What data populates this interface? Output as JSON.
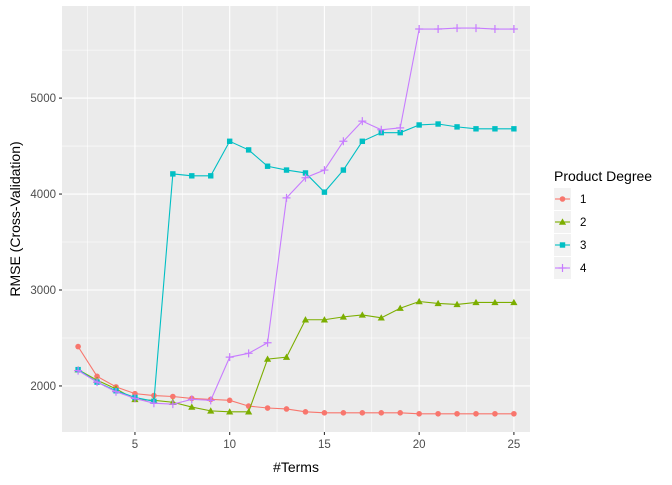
{
  "chart_data": {
    "type": "line",
    "xlabel": "#Terms",
    "ylabel": "RMSE (Cross-Validation)",
    "xlim": [
      1.15,
      25.85
    ],
    "ylim": [
      1520,
      5960
    ],
    "x_ticks": [
      5,
      10,
      15,
      20,
      25
    ],
    "y_ticks": [
      2000,
      3000,
      4000,
      5000
    ],
    "grid": true,
    "legend": {
      "title": "Product Degree",
      "position": "right"
    },
    "series": [
      {
        "name": "1",
        "color": "#F8766D",
        "marker": "circle",
        "x": [
          2,
          3,
          4,
          5,
          6,
          7,
          8,
          9,
          10,
          11,
          12,
          13,
          14,
          15,
          16,
          17,
          18,
          19,
          20,
          21,
          22,
          23,
          24,
          25
        ],
        "values": [
          2410,
          2100,
          1990,
          1920,
          1900,
          1890,
          1870,
          1860,
          1850,
          1790,
          1770,
          1760,
          1730,
          1720,
          1720,
          1720,
          1720,
          1720,
          1710,
          1710,
          1710,
          1710,
          1710,
          1710
        ]
      },
      {
        "name": "2",
        "color": "#7CAE00",
        "marker": "triangle",
        "x": [
          2,
          3,
          4,
          5,
          6,
          7,
          8,
          9,
          10,
          11,
          12,
          13,
          14,
          15,
          16,
          17,
          18,
          19,
          20,
          21,
          22,
          23,
          24,
          25
        ],
        "values": [
          2170,
          2060,
          1970,
          1860,
          1850,
          1830,
          1780,
          1740,
          1730,
          1730,
          2280,
          2300,
          2690,
          2690,
          2720,
          2740,
          2710,
          2810,
          2880,
          2860,
          2850,
          2870,
          2870,
          2870
        ]
      },
      {
        "name": "3",
        "color": "#00BFC4",
        "marker": "square",
        "x": [
          2,
          3,
          4,
          5,
          6,
          7,
          8,
          9,
          10,
          11,
          12,
          13,
          14,
          15,
          16,
          17,
          18,
          19,
          20,
          21,
          22,
          23,
          24,
          25
        ],
        "values": [
          2170,
          2040,
          1950,
          1880,
          1840,
          4210,
          4190,
          4190,
          4550,
          4460,
          4290,
          4250,
          4220,
          4020,
          4250,
          4550,
          4640,
          4640,
          4720,
          4730,
          4700,
          4680,
          4680,
          4680
        ]
      },
      {
        "name": "4",
        "color": "#C77CFF",
        "marker": "plus",
        "x": [
          2,
          3,
          4,
          5,
          6,
          7,
          8,
          9,
          10,
          11,
          12,
          13,
          14,
          15,
          16,
          17,
          18,
          19,
          20,
          21,
          22,
          23,
          24,
          25
        ],
        "values": [
          2160,
          2040,
          1940,
          1870,
          1820,
          1810,
          1860,
          1850,
          2300,
          2340,
          2450,
          3960,
          4170,
          4250,
          4550,
          4760,
          4670,
          4690,
          5720,
          5720,
          5730,
          5730,
          5720,
          5720
        ]
      }
    ]
  }
}
